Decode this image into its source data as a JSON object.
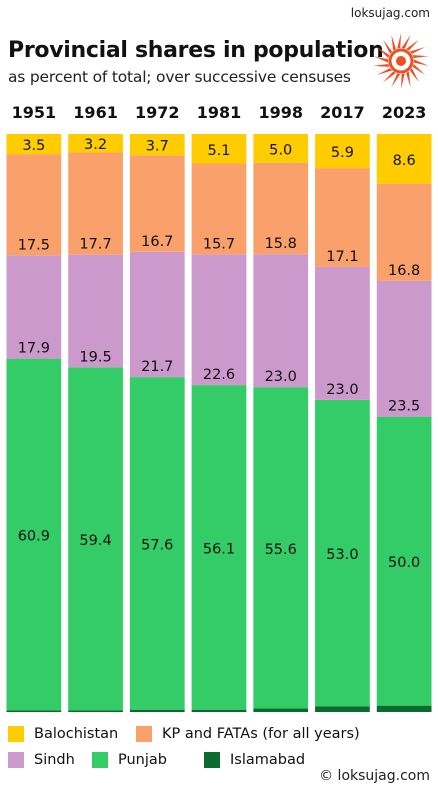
{
  "site_label": "loksujag.com",
  "copyright": "© loksujag.com",
  "logo_icon": "sun-burst-logo-icon",
  "colors": {
    "Balochistan": "#ffcc00",
    "KP and FATAs (for all years)": "#f9a06b",
    "Sindh": "#cc99cc",
    "Punjab": "#33cc66",
    "Islamabad": "#0b6b2f",
    "logo": "#f04e23"
  },
  "chart_data": {
    "type": "bar",
    "stacked": true,
    "title": "Provincial shares in population",
    "subtitle": "as percent of total; over successive censuses",
    "categories": [
      "1951",
      "1961",
      "1972",
      "1981",
      "1998",
      "2017",
      "2023"
    ],
    "ylim": [
      0,
      100
    ],
    "grid": false,
    "legend_position": "bottom",
    "series": [
      {
        "name": "Islamabad",
        "values": [
          0.3,
          0.3,
          0.4,
          0.4,
          0.6,
          1.0,
          1.1
        ]
      },
      {
        "name": "Punjab",
        "values": [
          60.9,
          59.4,
          57.6,
          56.1,
          55.6,
          53.0,
          50.0
        ]
      },
      {
        "name": "Sindh",
        "values": [
          17.9,
          19.5,
          21.7,
          22.6,
          23.0,
          23.0,
          23.5
        ]
      },
      {
        "name": "KP and FATAs (for all years)",
        "values": [
          17.5,
          17.7,
          16.7,
          15.7,
          15.8,
          17.1,
          16.8
        ]
      },
      {
        "name": "Balochistan",
        "values": [
          3.5,
          3.2,
          3.7,
          5.1,
          5.0,
          5.9,
          8.6
        ]
      }
    ]
  },
  "legend": [
    {
      "label": "Balochistan",
      "series": "Balochistan"
    },
    {
      "label": "KP and FATAs (for all years)",
      "series": "KP and FATAs (for all years)"
    },
    {
      "label": "Sindh",
      "series": "Sindh"
    },
    {
      "label": "Punjab",
      "series": "Punjab"
    },
    {
      "label": "Islamabad",
      "series": "Islamabad"
    }
  ]
}
